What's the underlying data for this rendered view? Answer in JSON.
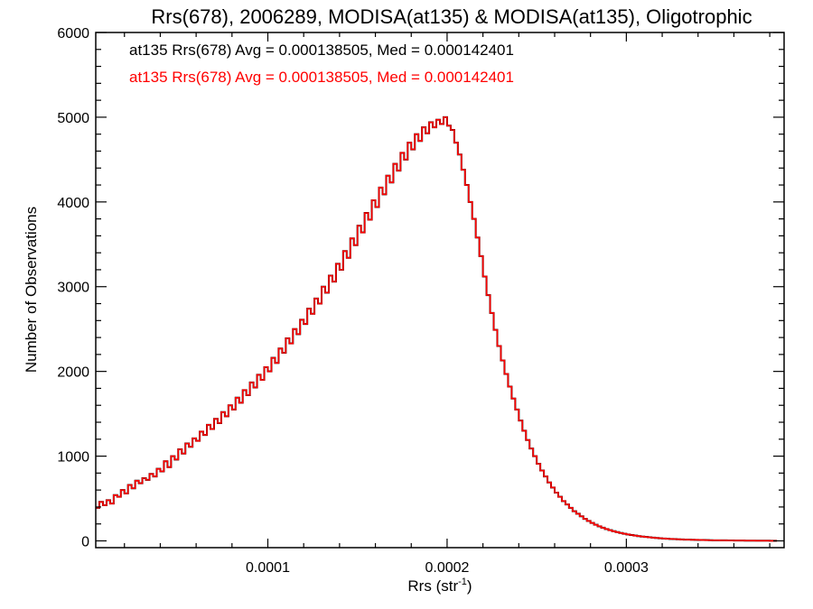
{
  "chart_data": {
    "type": "bar",
    "title": "Rrs(678), 2006289, MODISA(at135) & MODISA(at135), Oligotrophic",
    "xlabel": "Rrs (str",
    "xlabel_sup": "-1",
    "xlabel_suffix": ")",
    "ylabel": "Number of Observations",
    "xlim": [
      4e-06,
      0.000388
    ],
    "ylim": [
      -80,
      6000
    ],
    "bin_width": 2e-06,
    "xticks": [
      0.0001,
      0.0002,
      0.0003
    ],
    "xtick_labels": [
      "0.0001",
      "0.0002",
      "0.0003"
    ],
    "yticks": [
      0,
      1000,
      2000,
      3000,
      4000,
      5000,
      6000
    ],
    "ytick_labels": [
      "0",
      "1000",
      "2000",
      "3000",
      "4000",
      "5000",
      "6000"
    ],
    "grid": false,
    "legend_position": "top-left",
    "series": [
      {
        "name": "at135 Rrs(678) Avg = 0.000138505, Med = 0.000142401",
        "color": "#000000",
        "values": [
          390,
          460,
          420,
          480,
          440,
          540,
          520,
          600,
          560,
          660,
          620,
          710,
          680,
          740,
          720,
          790,
          760,
          850,
          820,
          940,
          870,
          1000,
          960,
          1080,
          1030,
          1150,
          1110,
          1210,
          1180,
          1290,
          1250,
          1370,
          1320,
          1440,
          1390,
          1520,
          1470,
          1600,
          1550,
          1690,
          1630,
          1780,
          1720,
          1870,
          1810,
          1960,
          1900,
          2050,
          2000,
          2160,
          2100,
          2270,
          2220,
          2390,
          2330,
          2500,
          2440,
          2610,
          2560,
          2740,
          2680,
          2860,
          2800,
          3000,
          2930,
          3130,
          3060,
          3270,
          3200,
          3420,
          3340,
          3570,
          3490,
          3720,
          3640,
          3870,
          3790,
          4020,
          3940,
          4170,
          4090,
          4310,
          4230,
          4450,
          4370,
          4580,
          4500,
          4700,
          4620,
          4800,
          4720,
          4880,
          4810,
          4940,
          4880,
          4970,
          4920,
          5000,
          4900,
          4850,
          4700,
          4560,
          4380,
          4200,
          4000,
          3800,
          3580,
          3360,
          3120,
          2900,
          2690,
          2490,
          2300,
          2130,
          1970,
          1820,
          1680,
          1550,
          1420,
          1300,
          1190,
          1090,
          1000,
          910,
          830,
          760,
          690,
          630,
          570,
          520,
          470,
          430,
          390,
          350,
          320,
          290,
          260,
          235,
          212,
          190,
          172,
          155,
          140,
          126,
          114,
          103,
          93,
          84,
          76,
          69,
          62,
          56,
          51,
          46,
          42,
          38,
          34,
          31,
          28,
          25,
          23,
          21,
          19,
          17,
          15,
          14,
          13,
          12,
          11,
          10,
          9,
          8,
          7,
          7,
          6,
          6,
          5,
          5,
          4,
          4,
          4,
          3,
          3,
          3,
          2,
          2,
          2,
          2,
          1,
          1
        ]
      },
      {
        "name": "at135 Rrs(678) Avg = 0.000138505, Med = 0.000142401",
        "color": "#ff0000",
        "values": [
          390,
          460,
          420,
          480,
          440,
          540,
          520,
          600,
          560,
          660,
          620,
          710,
          680,
          740,
          720,
          790,
          760,
          850,
          820,
          940,
          870,
          1000,
          960,
          1080,
          1030,
          1150,
          1110,
          1210,
          1180,
          1290,
          1250,
          1370,
          1320,
          1440,
          1390,
          1520,
          1470,
          1600,
          1550,
          1690,
          1630,
          1780,
          1720,
          1870,
          1810,
          1960,
          1900,
          2050,
          2000,
          2160,
          2100,
          2270,
          2220,
          2390,
          2330,
          2500,
          2440,
          2610,
          2560,
          2740,
          2680,
          2860,
          2800,
          3000,
          2930,
          3130,
          3060,
          3270,
          3200,
          3420,
          3340,
          3570,
          3490,
          3720,
          3640,
          3870,
          3790,
          4020,
          3940,
          4170,
          4090,
          4310,
          4230,
          4450,
          4370,
          4580,
          4500,
          4700,
          4620,
          4800,
          4720,
          4880,
          4810,
          4940,
          4880,
          4970,
          4920,
          5000,
          4900,
          4850,
          4700,
          4560,
          4380,
          4200,
          4000,
          3800,
          3580,
          3360,
          3120,
          2900,
          2690,
          2490,
          2300,
          2130,
          1970,
          1820,
          1680,
          1550,
          1420,
          1300,
          1190,
          1090,
          1000,
          910,
          830,
          760,
          690,
          630,
          570,
          520,
          470,
          430,
          390,
          350,
          320,
          290,
          260,
          235,
          212,
          190,
          172,
          155,
          140,
          126,
          114,
          103,
          93,
          84,
          76,
          69,
          62,
          56,
          51,
          46,
          42,
          38,
          34,
          31,
          28,
          25,
          23,
          21,
          19,
          17,
          15,
          14,
          13,
          12,
          11,
          10,
          9,
          8,
          7,
          7,
          6,
          6,
          5,
          5,
          4,
          4,
          4,
          3,
          3,
          3,
          2,
          2,
          2,
          2,
          1,
          1
        ]
      }
    ]
  }
}
